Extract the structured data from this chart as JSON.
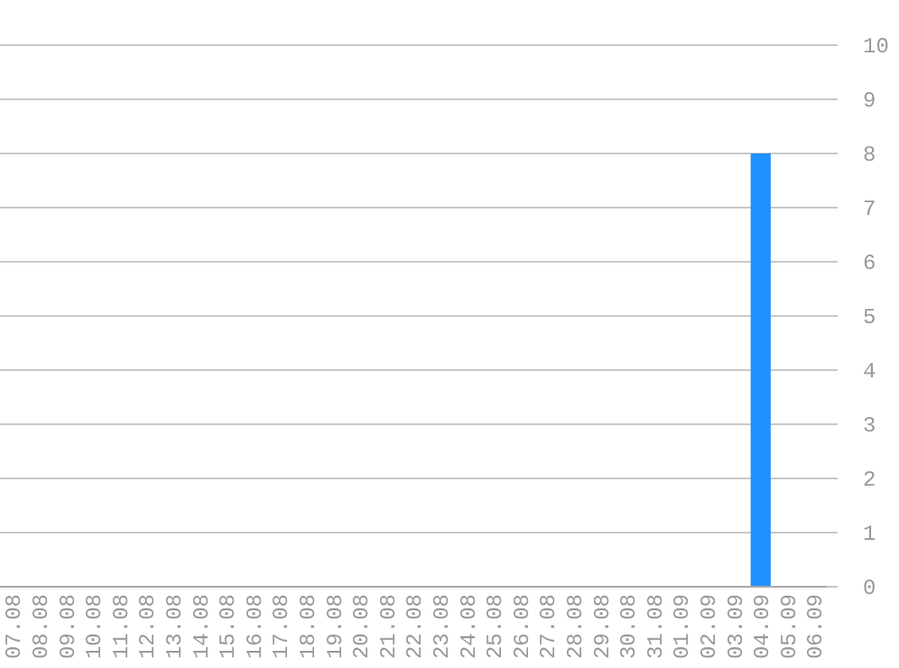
{
  "chart_data": {
    "type": "bar",
    "categories": [
      "07.08",
      "08.08",
      "09.08",
      "10.08",
      "11.08",
      "12.08",
      "13.08",
      "14.08",
      "15.08",
      "16.08",
      "17.08",
      "18.08",
      "19.08",
      "20.08",
      "21.08",
      "22.08",
      "23.08",
      "24.08",
      "25.08",
      "26.08",
      "27.08",
      "28.08",
      "29.08",
      "30.08",
      "31.08",
      "01.09",
      "02.09",
      "03.09",
      "04.09",
      "05.09",
      "06.09"
    ],
    "values": [
      0,
      0,
      0,
      0,
      0,
      0,
      0,
      0,
      0,
      0,
      0,
      0,
      0,
      0,
      0,
      0,
      0,
      0,
      0,
      0,
      0,
      0,
      0,
      0,
      0,
      0,
      0,
      0,
      8,
      0,
      0
    ],
    "color": "#1e90ff",
    "ylim": [
      0,
      10
    ],
    "yticks": [
      0,
      1,
      2,
      3,
      4,
      5,
      6,
      7,
      8,
      9,
      10
    ],
    "grid": "y"
  }
}
